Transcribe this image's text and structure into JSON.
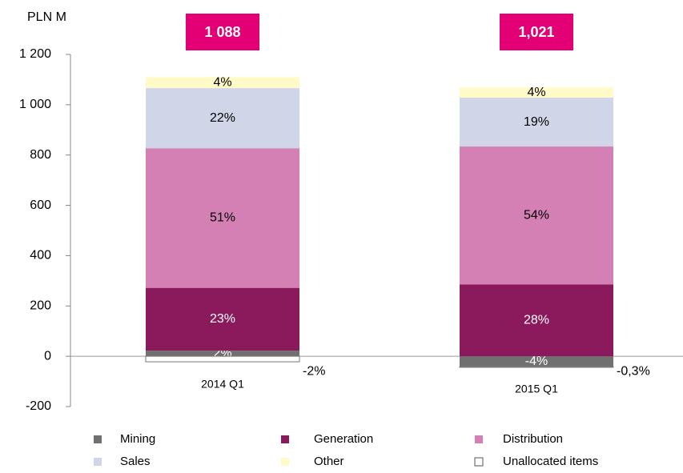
{
  "chart_data": {
    "type": "stacked_bar",
    "y_axis_label": "PLN M",
    "categories": [
      "2014 Q1",
      "2015 Q1"
    ],
    "totals": [
      1088,
      1021
    ],
    "total_labels": [
      "1 088",
      "1,021"
    ],
    "ylim": [
      -200,
      1200
    ],
    "yticks": [
      -200,
      0,
      200,
      400,
      600,
      800,
      {
        "value": 1000,
        "label": "1 000"
      },
      {
        "value": 1200,
        "label": "1 200"
      }
    ],
    "series": [
      {
        "name": "Mining",
        "color": "#707070",
        "values": [
          22,
          -41
        ],
        "percent_labels": [
          "2%",
          "-4%"
        ]
      },
      {
        "name": "Generation",
        "color": "#8b1a5c",
        "values": [
          250,
          286
        ],
        "percent_labels": [
          "23%",
          "28%"
        ]
      },
      {
        "name": "Distribution",
        "color": "#d580b5",
        "values": [
          555,
          548
        ],
        "percent_labels": [
          "51%",
          "54%"
        ]
      },
      {
        "name": "Sales",
        "color": "#d0d5e8",
        "values": [
          239,
          194
        ],
        "percent_labels": [
          "22%",
          "19%"
        ]
      },
      {
        "name": "Other",
        "color": "#fffac8",
        "values": [
          44,
          41
        ],
        "percent_labels": [
          "4%",
          "4%"
        ]
      },
      {
        "name": "Unallocated items",
        "color": "#ffffff",
        "values": [
          -22,
          -3
        ],
        "percent_labels": [
          "-2%",
          "-0,3%"
        ]
      }
    ]
  }
}
